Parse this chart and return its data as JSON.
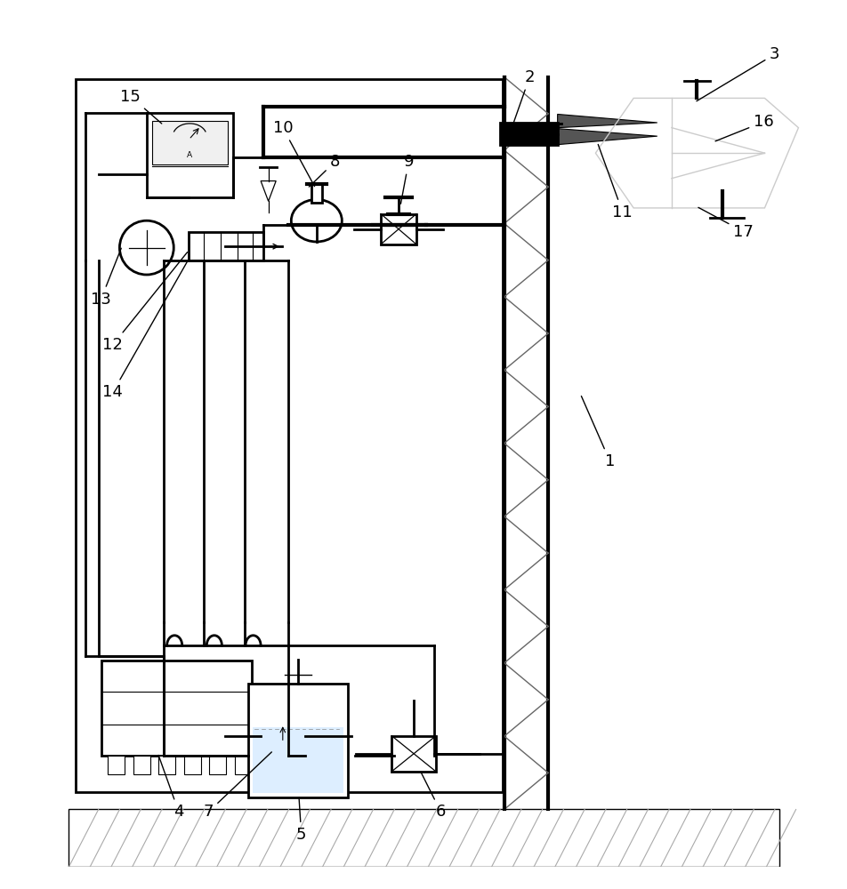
{
  "bg_color": "#ffffff",
  "line_color": "#000000",
  "gray_color": "#888888",
  "light_gray": "#cccccc",
  "dark_gray": "#555555",
  "figsize": [
    9.53,
    10.0
  ],
  "dpi": 100,
  "label_positions": {
    "1": [
      0.72,
      0.48,
      0.685,
      0.56
    ],
    "2": [
      0.625,
      0.935,
      0.605,
      0.878
    ],
    "3": [
      0.915,
      0.962,
      0.82,
      0.905
    ],
    "4": [
      0.21,
      0.065,
      0.185,
      0.135
    ],
    "5": [
      0.355,
      0.038,
      0.352,
      0.085
    ],
    "6": [
      0.52,
      0.065,
      0.495,
      0.115
    ],
    "7": [
      0.245,
      0.065,
      0.322,
      0.138
    ],
    "8": [
      0.395,
      0.835,
      0.362,
      0.803
    ],
    "9": [
      0.482,
      0.835,
      0.472,
      0.782
    ],
    "10": [
      0.333,
      0.875,
      0.372,
      0.803
    ],
    "11": [
      0.735,
      0.775,
      0.705,
      0.858
    ],
    "12": [
      0.132,
      0.618,
      0.222,
      0.73
    ],
    "13": [
      0.118,
      0.672,
      0.143,
      0.735
    ],
    "14": [
      0.132,
      0.562,
      0.222,
      0.72
    ],
    "15": [
      0.153,
      0.912,
      0.192,
      0.878
    ],
    "16": [
      0.902,
      0.882,
      0.842,
      0.858
    ],
    "17": [
      0.878,
      0.752,
      0.822,
      0.782
    ]
  }
}
